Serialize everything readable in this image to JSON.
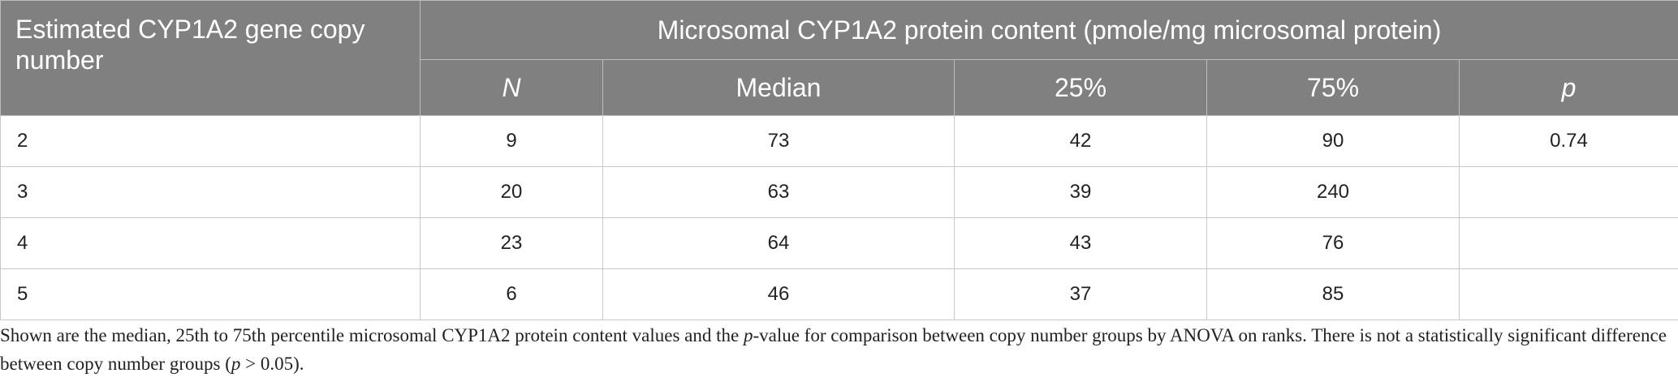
{
  "table": {
    "header": {
      "row_label": "Estimated CYP1A2 gene copy number",
      "group": "Microsomal CYP1A2 protein content (pmole/mg microsomal protein)",
      "columns": [
        "N",
        "Median",
        "25%",
        "75%",
        "p"
      ]
    },
    "rows": [
      [
        2,
        9,
        73,
        42,
        90,
        0.74
      ],
      [
        3,
        20,
        63,
        39,
        240
      ],
      [
        4,
        23,
        64,
        43,
        76
      ],
      [
        5,
        6,
        46,
        37,
        85
      ]
    ]
  },
  "footnote": [
    "Shown are the median, 25th to 75th percentile microsomal CYP1A2 protein content values and the ",
    "p",
    "-value for comparison between copy number groups by ANOVA on ranks. There is not a statistically significant difference between copy number groups (",
    "p",
    " > 0.05)."
  ]
}
